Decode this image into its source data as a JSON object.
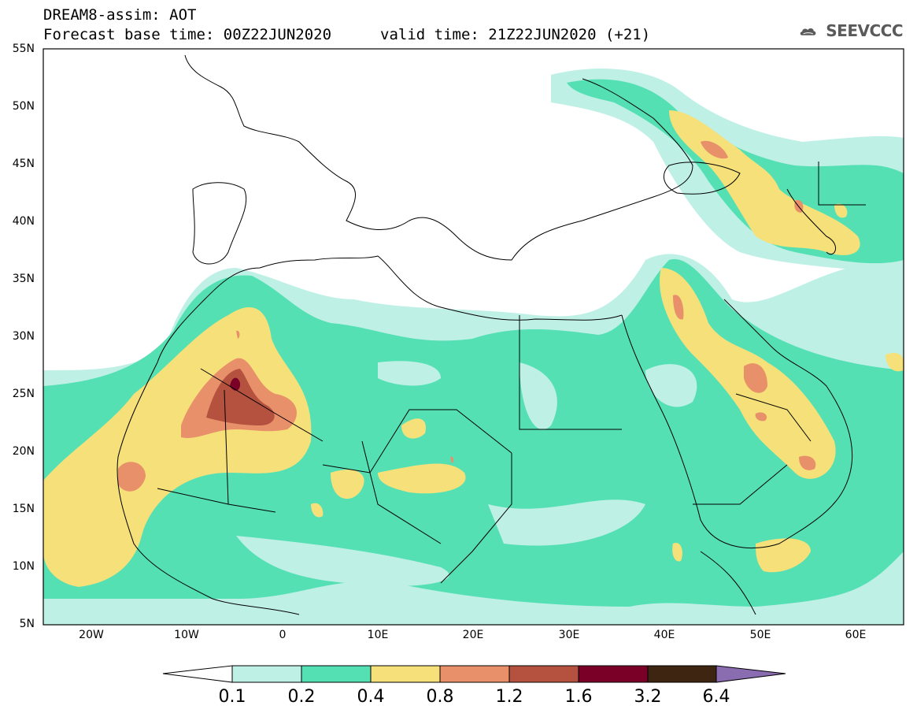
{
  "header": {
    "line1": "DREAM8-assim: AOT",
    "line2": "Forecast base time: 00Z22JUN2020",
    "line2b": "valid time: 21Z22JUN2020 (+21)",
    "logo_text": "SEEVCCC",
    "logo_icon": "cloud-icon"
  },
  "axes": {
    "lat_labels": [
      "55N",
      "50N",
      "45N",
      "40N",
      "35N",
      "30N",
      "25N",
      "20N",
      "15N",
      "10N",
      "5N"
    ],
    "lon_labels": [
      "20W",
      "10W",
      "0",
      "10E",
      "20E",
      "30E",
      "40E",
      "50E",
      "60E"
    ]
  },
  "map_extent": {
    "lon": [
      -25,
      65
    ],
    "lat": [
      5,
      55
    ]
  },
  "legend": {
    "labels": [
      "0.1",
      "0.2",
      "0.4",
      "0.8",
      "1.2",
      "1.6",
      "3.2",
      "6.4"
    ],
    "colors": [
      "#ffffff",
      "#bff0e6",
      "#55e0b4",
      "#f5e07a",
      "#e8906a",
      "#b4523f",
      "#7a0028",
      "#3d2512",
      "#8a6cb0"
    ]
  },
  "colors": {
    "c1": "#bff0e6",
    "c2": "#55e0b4",
    "c3": "#f5e07a",
    "c4": "#e8906a",
    "c5": "#b4523f",
    "c6": "#7a0028",
    "coast": "#000000"
  }
}
